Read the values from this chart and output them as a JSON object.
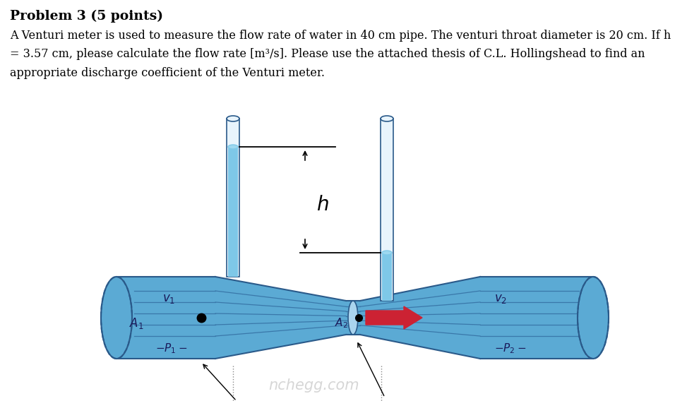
{
  "title": "Problem 3 (5 points)",
  "line1": "A Venturi meter is used to measure the flow rate of water in 40 cm pipe. The venturi throat diameter is 20 cm. If h",
  "line2": "= 3.57 cm, please calculate the flow rate [m³/s]. Please use the attached thesis of C.L. Hollingshead to find an",
  "line3": "appropriate discharge coefficient of the Venturi meter.",
  "bg_color": "#ffffff",
  "pipe_color": "#7ec8e8",
  "pipe_fill": "#5baad4",
  "pipe_line_color": "#2a5a8a",
  "arrow_color": "#cc2233",
  "text_color": "#000000",
  "label_color": "#1a1a5a",
  "tube_wall": "#cccccc",
  "tube_fill": "#7ec8e8",
  "watermark": "nchegg.com"
}
